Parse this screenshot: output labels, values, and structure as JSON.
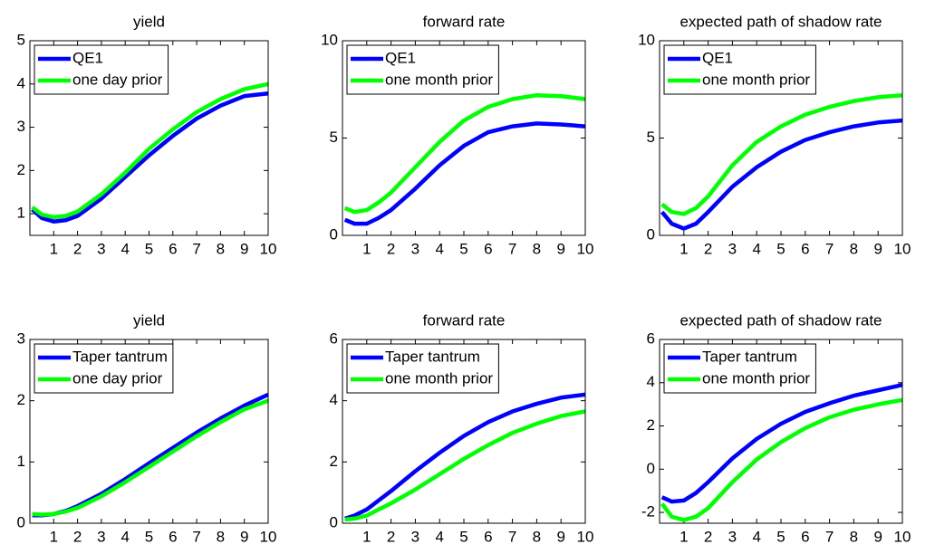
{
  "chart_data": [
    {
      "type": "line",
      "title": "yield",
      "x": [
        0.1,
        0.5,
        1,
        1.5,
        2,
        3,
        4,
        5,
        6,
        7,
        8,
        9,
        10
      ],
      "series": [
        {
          "name": "QE1",
          "color": "#0000ff",
          "values": [
            1.1,
            0.9,
            0.82,
            0.85,
            0.95,
            1.35,
            1.85,
            2.35,
            2.8,
            3.2,
            3.5,
            3.72,
            3.78
          ]
        },
        {
          "name": "one day prior",
          "color": "#00ff00",
          "values": [
            1.15,
            0.98,
            0.92,
            0.95,
            1.05,
            1.45,
            1.95,
            2.5,
            2.95,
            3.35,
            3.65,
            3.88,
            4.0
          ]
        }
      ],
      "xlim": [
        0,
        10
      ],
      "xticks": [
        1,
        2,
        3,
        4,
        5,
        6,
        7,
        8,
        9,
        10
      ],
      "ylim": [
        0.5,
        5
      ],
      "yticks": [
        1,
        2,
        3,
        4,
        5
      ],
      "legend": "upper-left"
    },
    {
      "type": "line",
      "title": "forward rate",
      "x": [
        0.1,
        0.5,
        1,
        1.5,
        2,
        3,
        4,
        5,
        6,
        7,
        8,
        9,
        10
      ],
      "series": [
        {
          "name": "QE1",
          "color": "#0000ff",
          "values": [
            0.8,
            0.6,
            0.6,
            0.9,
            1.3,
            2.4,
            3.6,
            4.6,
            5.3,
            5.6,
            5.75,
            5.7,
            5.6
          ]
        },
        {
          "name": "one month prior",
          "color": "#00ff00",
          "values": [
            1.4,
            1.2,
            1.3,
            1.7,
            2.2,
            3.5,
            4.8,
            5.9,
            6.6,
            7.0,
            7.2,
            7.15,
            7.0
          ]
        }
      ],
      "xlim": [
        0,
        10
      ],
      "xticks": [
        1,
        2,
        3,
        4,
        5,
        6,
        7,
        8,
        9,
        10
      ],
      "ylim": [
        0,
        10
      ],
      "yticks": [
        0,
        5,
        10
      ],
      "legend": "upper-left"
    },
    {
      "type": "line",
      "title": "expected path of shadow rate",
      "x": [
        0.1,
        0.5,
        1,
        1.5,
        2,
        3,
        4,
        5,
        6,
        7,
        8,
        9,
        10
      ],
      "series": [
        {
          "name": "QE1",
          "color": "#0000ff",
          "values": [
            1.2,
            0.6,
            0.35,
            0.6,
            1.2,
            2.5,
            3.5,
            4.3,
            4.9,
            5.3,
            5.6,
            5.8,
            5.9
          ]
        },
        {
          "name": "one month prior",
          "color": "#00ff00",
          "values": [
            1.6,
            1.2,
            1.1,
            1.4,
            2.0,
            3.6,
            4.8,
            5.6,
            6.2,
            6.6,
            6.9,
            7.1,
            7.2
          ]
        }
      ],
      "xlim": [
        0,
        10
      ],
      "xticks": [
        1,
        2,
        3,
        4,
        5,
        6,
        7,
        8,
        9,
        10
      ],
      "ylim": [
        0,
        10
      ],
      "yticks": [
        0,
        5,
        10
      ],
      "legend": "upper-left"
    },
    {
      "type": "line",
      "title": "yield",
      "x": [
        0.1,
        0.5,
        1,
        1.5,
        2,
        3,
        4,
        5,
        6,
        7,
        8,
        9,
        10
      ],
      "series": [
        {
          "name": "Taper tantrum",
          "color": "#0000ff",
          "values": [
            0.13,
            0.13,
            0.15,
            0.2,
            0.28,
            0.48,
            0.72,
            0.98,
            1.23,
            1.48,
            1.71,
            1.92,
            2.1
          ]
        },
        {
          "name": "one day prior",
          "color": "#00ff00",
          "values": [
            0.15,
            0.14,
            0.15,
            0.19,
            0.25,
            0.44,
            0.67,
            0.92,
            1.17,
            1.42,
            1.65,
            1.86,
            2.0
          ]
        }
      ],
      "xlim": [
        0,
        10
      ],
      "xticks": [
        1,
        2,
        3,
        4,
        5,
        6,
        7,
        8,
        9,
        10
      ],
      "ylim": [
        0,
        3
      ],
      "yticks": [
        0,
        1,
        2,
        3
      ],
      "legend": "upper-left"
    },
    {
      "type": "line",
      "title": "forward rate",
      "x": [
        0.1,
        0.5,
        1,
        1.5,
        2,
        3,
        4,
        5,
        6,
        7,
        8,
        9,
        10
      ],
      "series": [
        {
          "name": "Taper tantrum",
          "color": "#0000ff",
          "values": [
            0.15,
            0.25,
            0.45,
            0.75,
            1.05,
            1.7,
            2.3,
            2.85,
            3.3,
            3.65,
            3.9,
            4.1,
            4.2
          ]
        },
        {
          "name": "one month prior",
          "color": "#00ff00",
          "values": [
            0.12,
            0.15,
            0.25,
            0.45,
            0.65,
            1.1,
            1.6,
            2.1,
            2.55,
            2.95,
            3.25,
            3.5,
            3.65
          ]
        }
      ],
      "xlim": [
        0,
        10
      ],
      "xticks": [
        1,
        2,
        3,
        4,
        5,
        6,
        7,
        8,
        9,
        10
      ],
      "ylim": [
        0,
        6
      ],
      "yticks": [
        0,
        2,
        4,
        6
      ],
      "legend": "upper-left"
    },
    {
      "type": "line",
      "title": "expected path of shadow rate",
      "x": [
        0.1,
        0.5,
        1,
        1.5,
        2,
        3,
        4,
        5,
        6,
        7,
        8,
        9,
        10
      ],
      "series": [
        {
          "name": "Taper tantrum",
          "color": "#0000ff",
          "values": [
            -1.3,
            -1.5,
            -1.45,
            -1.1,
            -0.6,
            0.5,
            1.4,
            2.1,
            2.65,
            3.05,
            3.4,
            3.65,
            3.9
          ]
        },
        {
          "name": "one month prior",
          "color": "#00ff00",
          "values": [
            -1.6,
            -2.2,
            -2.35,
            -2.2,
            -1.8,
            -0.6,
            0.45,
            1.25,
            1.9,
            2.4,
            2.75,
            3.0,
            3.2
          ]
        }
      ],
      "xlim": [
        0,
        10
      ],
      "xticks": [
        1,
        2,
        3,
        4,
        5,
        6,
        7,
        8,
        9,
        10
      ],
      "ylim": [
        -2.5,
        6
      ],
      "yticks": [
        -2,
        0,
        2,
        4,
        6
      ],
      "legend": "upper-left"
    }
  ]
}
